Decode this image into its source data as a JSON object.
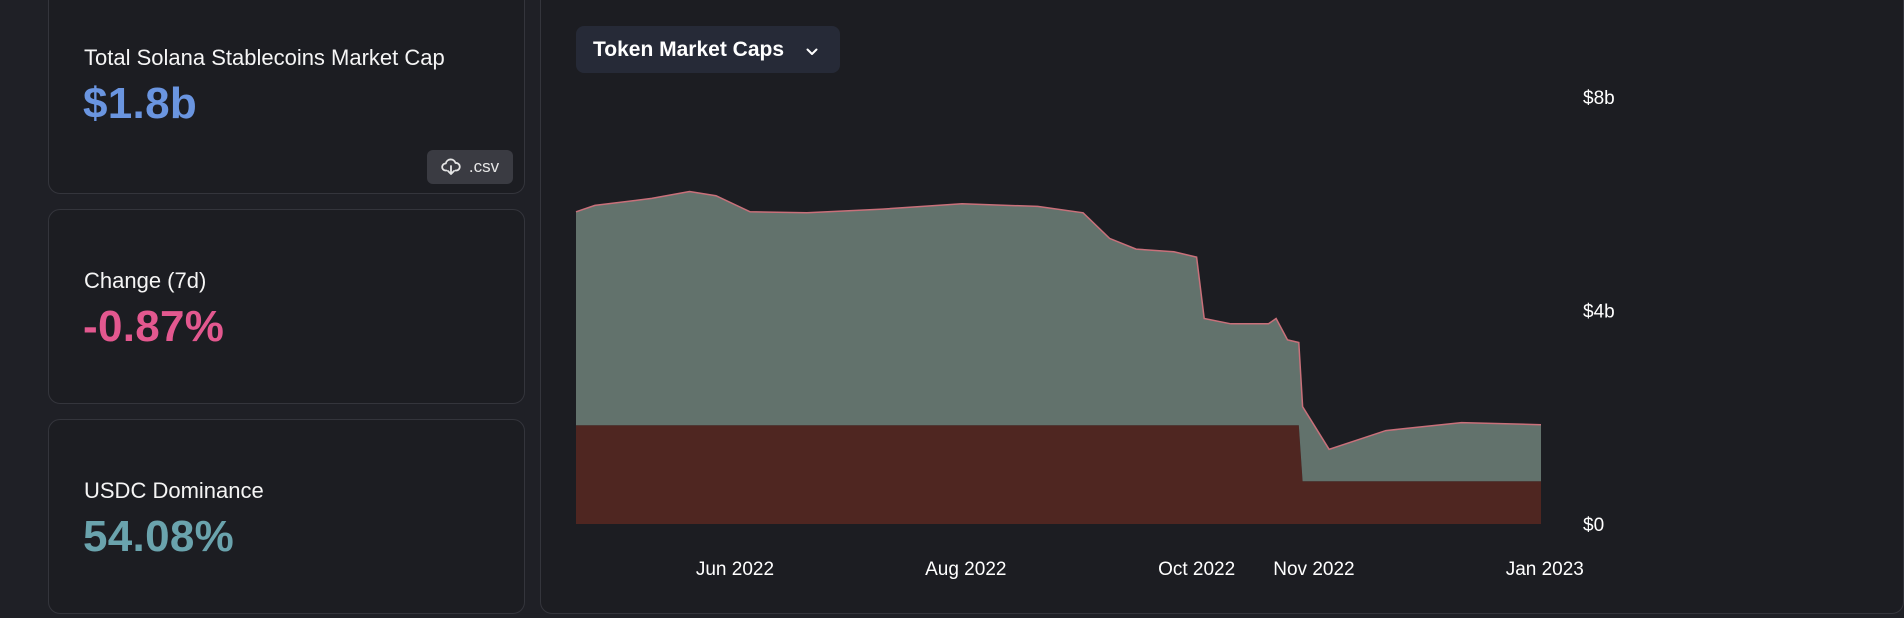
{
  "stats": {
    "market_cap": {
      "label": "Total Solana Stablecoins Market Cap",
      "value": "$1.8b",
      "csv_label": ".csv",
      "download_icon": "cloud-download-icon"
    },
    "change": {
      "label": "Change (7d)",
      "value": "-0.87%"
    },
    "dominance": {
      "label": "USDC Dominance",
      "value": "54.08%"
    }
  },
  "colors": {
    "market_cap_value": "#6a95e0",
    "change_value": "#e3588f",
    "dominance_value": "#6aa3ad",
    "upper_area": "#62726c",
    "lower_area": "#4f2621"
  },
  "chart_data": {
    "type": "area",
    "dropdown": {
      "label": "Token Market Caps",
      "icon": "chevron-down-icon"
    },
    "title": "",
    "xlabel": "",
    "ylabel": "",
    "ylim": [
      0,
      8
    ],
    "y_ticks": [
      {
        "value": 0,
        "label": "$0"
      },
      {
        "value": 4,
        "label": "$4b"
      },
      {
        "value": 8,
        "label": "$8b"
      }
    ],
    "x_ticks": [
      {
        "date": "2022-06-01",
        "label": "Jun 2022"
      },
      {
        "date": "2022-08-01",
        "label": "Aug 2022"
      },
      {
        "date": "2022-10-01",
        "label": "Oct 2022"
      },
      {
        "date": "2022-11-01",
        "label": "Nov 2022"
      },
      {
        "date": "2023-01-01",
        "label": "Jan 2023"
      }
    ],
    "x": [
      "2022-04-20",
      "2022-04-25",
      "2022-05-10",
      "2022-05-20",
      "2022-05-27",
      "2022-06-05",
      "2022-06-20",
      "2022-07-10",
      "2022-07-31",
      "2022-08-20",
      "2022-09-01",
      "2022-09-08",
      "2022-09-15",
      "2022-09-25",
      "2022-10-01",
      "2022-10-03",
      "2022-10-10",
      "2022-10-20",
      "2022-10-22",
      "2022-10-25",
      "2022-10-28",
      "2022-10-29",
      "2022-11-05",
      "2022-11-20",
      "2022-12-10",
      "2022-12-31"
    ],
    "series": [
      {
        "values": [
          1.85,
          1.85,
          1.85,
          1.85,
          1.85,
          1.85,
          1.85,
          1.85,
          1.85,
          1.85,
          1.85,
          1.85,
          1.85,
          1.85,
          1.85,
          1.85,
          1.85,
          1.85,
          1.85,
          1.85,
          1.85,
          0.8,
          0.8,
          0.8,
          0.8,
          0.8
        ]
      },
      {
        "values": [
          4.0,
          4.12,
          4.25,
          4.38,
          4.3,
          4.0,
          3.98,
          4.05,
          4.15,
          4.1,
          3.98,
          3.5,
          3.3,
          3.25,
          3.15,
          2.0,
          1.9,
          1.9,
          2.0,
          1.6,
          1.55,
          1.4,
          0.6,
          0.95,
          1.1,
          1.06
        ]
      }
    ]
  }
}
